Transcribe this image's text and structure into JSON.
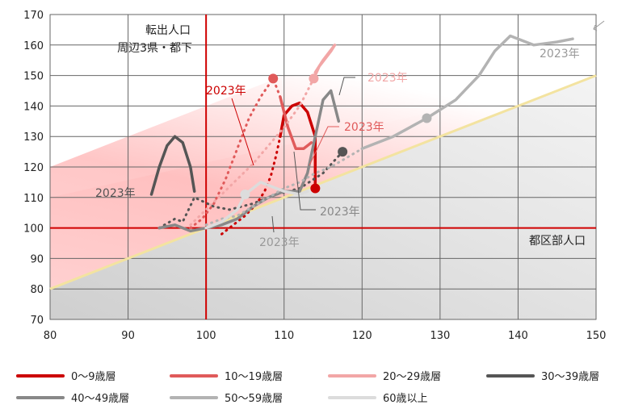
{
  "chart_data": {
    "type": "line",
    "xlim": [
      80,
      150
    ],
    "ylim": [
      70,
      170
    ],
    "x_ticks": [
      80,
      90,
      100,
      110,
      120,
      130,
      140,
      150
    ],
    "y_ticks": [
      70,
      80,
      90,
      100,
      110,
      120,
      130,
      140,
      150,
      160,
      170
    ],
    "reference_lines": {
      "x": 100,
      "y": 100
    },
    "diagonal": {
      "from": [
        80,
        80
      ],
      "to": [
        150,
        150
      ]
    },
    "annotations": {
      "y_axis_note_1": "転出人口",
      "y_axis_note_2": "周辺3県・都下",
      "x_axis_note": "都区部人口",
      "year_label": "2023年"
    },
    "series": [
      {
        "name": "0～9歳層",
        "color": "#cc0000",
        "points": [
          [
            102,
            98
          ],
          [
            103.5,
            101
          ],
          [
            105,
            104
          ],
          [
            106.5,
            108
          ],
          [
            107.5,
            112
          ],
          [
            108.3,
            117
          ],
          [
            109,
            124
          ],
          [
            109.5,
            130
          ],
          [
            110,
            137
          ],
          [
            111,
            140
          ],
          [
            112,
            141
          ],
          [
            113,
            138
          ],
          [
            114,
            130
          ],
          [
            114,
            122
          ],
          [
            114,
            116
          ],
          [
            114,
            113
          ]
        ],
        "dotted_until": 7,
        "end_marker": [
          114,
          113
        ]
      },
      {
        "name": "10～19歳層",
        "color": "#e05a5a",
        "points": [
          [
            98,
            100
          ],
          [
            99.5,
            103
          ],
          [
            101,
            108
          ],
          [
            102.5,
            116
          ],
          [
            104,
            126
          ],
          [
            105.5,
            136
          ],
          [
            107,
            143
          ],
          [
            108.6,
            149
          ],
          [
            109.5,
            143
          ],
          [
            110.5,
            133
          ],
          [
            111.5,
            126
          ],
          [
            112.5,
            126
          ],
          [
            113.5,
            128
          ]
        ],
        "dotted_until": 8,
        "end_marker": [
          108.6,
          149
        ]
      },
      {
        "name": "20～29歳層",
        "color": "#f2a6a6",
        "points": [
          [
            98,
            101
          ],
          [
            100,
            106
          ],
          [
            102,
            111
          ],
          [
            104,
            116
          ],
          [
            106,
            121
          ],
          [
            108,
            127
          ],
          [
            110,
            133
          ],
          [
            112,
            140
          ],
          [
            113,
            145
          ],
          [
            113.8,
            149
          ],
          [
            114.5,
            153
          ],
          [
            116,
            158
          ],
          [
            116.5,
            160
          ],
          [
            115,
            155
          ],
          [
            114,
            151
          ]
        ],
        "dotted_until": 9,
        "end_marker": [
          113.8,
          149
        ]
      },
      {
        "name": "30～39歳層",
        "color": "#555555",
        "points": [
          [
            94,
            100
          ],
          [
            96,
            103
          ],
          [
            97,
            102
          ],
          [
            98.5,
            110
          ],
          [
            101,
            107
          ],
          [
            103,
            106
          ],
          [
            106,
            108
          ],
          [
            109,
            111
          ],
          [
            112,
            113
          ],
          [
            115,
            118
          ],
          [
            117.5,
            125
          ]
        ],
        "dotted_until": 11,
        "end_marker": [
          117.5,
          125
        ],
        "extra_solid": [
          [
            93,
            111
          ],
          [
            94,
            120
          ],
          [
            95,
            127
          ],
          [
            96,
            130
          ],
          [
            97,
            128
          ],
          [
            98,
            120
          ],
          [
            98.5,
            112
          ]
        ]
      },
      {
        "name": "40～49歳層",
        "color": "#888888",
        "points": [
          [
            94,
            100
          ],
          [
            96,
            101
          ],
          [
            98,
            99
          ],
          [
            100,
            100
          ],
          [
            102,
            101
          ],
          [
            104,
            103
          ],
          [
            106,
            107
          ],
          [
            108,
            110
          ],
          [
            110,
            112
          ],
          [
            112,
            112
          ],
          [
            113,
            118
          ],
          [
            114,
            130
          ],
          [
            115,
            142
          ],
          [
            116,
            145
          ],
          [
            117,
            135
          ]
        ],
        "dotted_until": 0,
        "end_marker": null
      },
      {
        "name": "50～59歳層",
        "color": "#b3b3b3",
        "points": [
          [
            100,
            101
          ],
          [
            102,
            103
          ],
          [
            104,
            104
          ],
          [
            106,
            107
          ],
          [
            108,
            110
          ],
          [
            110,
            113
          ],
          [
            112,
            115
          ],
          [
            114,
            118
          ],
          [
            116,
            120
          ],
          [
            118,
            123
          ],
          [
            120,
            126
          ],
          [
            124,
            130
          ],
          [
            128.3,
            136
          ],
          [
            132,
            142
          ],
          [
            135,
            150
          ],
          [
            137,
            158
          ],
          [
            139,
            163
          ],
          [
            140,
            162
          ],
          [
            142,
            160
          ],
          [
            145,
            161
          ],
          [
            147,
            162
          ]
        ],
        "dotted_until": 10,
        "end_marker": [
          128.3,
          136
        ]
      },
      {
        "name": "60歳以上",
        "color": "#dcdcdc",
        "points": [
          [
            100,
            100
          ],
          [
            102,
            102
          ],
          [
            104,
            106
          ],
          [
            105,
            111
          ],
          [
            106,
            113
          ],
          [
            107,
            115
          ],
          [
            108,
            114
          ],
          [
            110,
            112
          ],
          [
            112,
            111
          ],
          [
            113,
            112
          ]
        ],
        "dotted_until": 0,
        "end_marker": [
          105,
          111
        ]
      }
    ]
  }
}
